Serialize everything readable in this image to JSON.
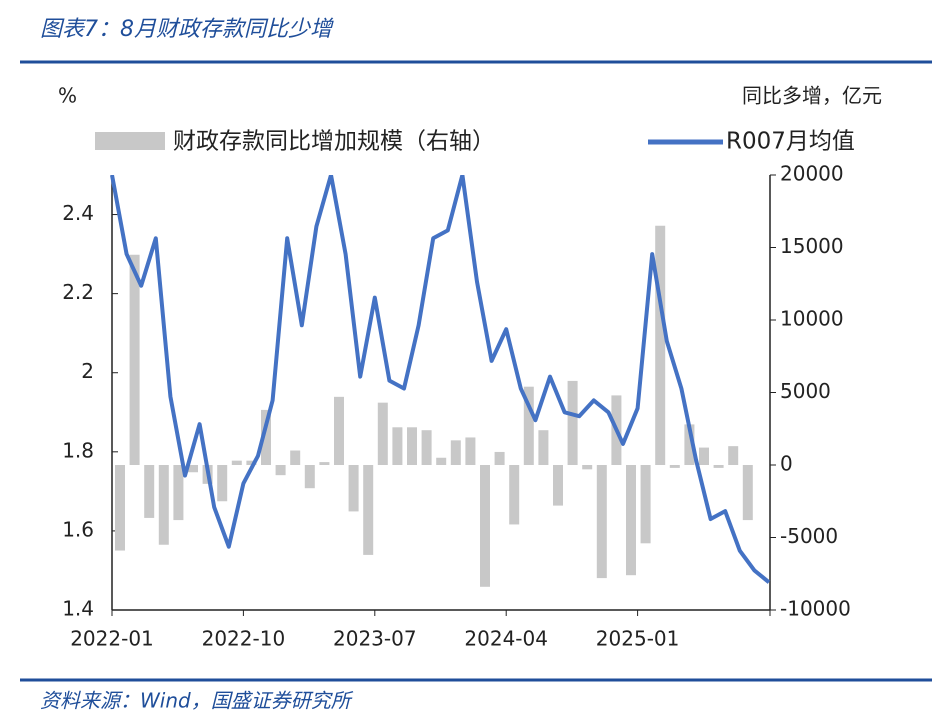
{
  "chart_data": {
    "type": "bar-line",
    "title": "图表7：8月财政存款同比少增",
    "y_label": "%",
    "y2_label": "同比多增，亿元",
    "source": "资料来源：Wind，国盛证券研究所",
    "categories": [
      "2022-01",
      null,
      null,
      null,
      null,
      null,
      null,
      null,
      null,
      "2022-10",
      null,
      null,
      null,
      null,
      null,
      null,
      null,
      null,
      "2023-07",
      null,
      null,
      null,
      null,
      null,
      null,
      null,
      null,
      "2024-04",
      null,
      null,
      null,
      null,
      null,
      null,
      null,
      null,
      "2025-01",
      null,
      null,
      null,
      null,
      null,
      null,
      null,
      null,
      null
    ],
    "series": [
      {
        "name": "财政存款同比增加规模（右轴）",
        "type": "bar",
        "axis": "y2",
        "color": "#c8c8c8",
        "values": [
          -5900,
          14500,
          -3650,
          -5500,
          -3800,
          -500,
          -1300,
          -2500,
          300,
          300,
          3800,
          -700,
          1000,
          -1600,
          200,
          4700,
          -3200,
          -6200,
          4300,
          2600,
          2600,
          2400,
          500,
          1700,
          1900,
          -8400,
          900,
          -4100,
          5400,
          2400,
          -2800,
          5800,
          -300,
          -7800,
          4800,
          -7600,
          -5400,
          16500,
          -200,
          2800,
          1200,
          -200,
          1300,
          -3800,
          null,
          null
        ]
      },
      {
        "name": "R007月均值",
        "type": "line",
        "color": "#4472c4",
        "values": [
          2.5,
          2.3,
          2.22,
          2.34,
          1.94,
          1.74,
          1.87,
          1.66,
          1.56,
          1.72,
          1.79,
          1.93,
          2.34,
          2.12,
          2.37,
          2.5,
          2.3,
          1.99,
          2.19,
          1.98,
          1.96,
          2.12,
          2.34,
          2.36,
          2.5,
          2.23,
          2.03,
          2.11,
          1.96,
          1.88,
          1.99,
          1.9,
          1.89,
          1.93,
          1.9,
          1.82,
          1.91,
          2.3,
          2.08,
          1.96,
          1.78,
          1.63,
          1.65,
          1.55,
          1.5,
          1.47
        ]
      }
    ],
    "ylim": [
      1.4,
      2.5
    ],
    "yticks": [
      1.4,
      1.6,
      1.8,
      2,
      2.2,
      2.4
    ],
    "y2lim": [
      -10000,
      20000
    ],
    "y2ticks": [
      -10000,
      -5000,
      0,
      5000,
      10000,
      15000,
      20000
    ]
  }
}
